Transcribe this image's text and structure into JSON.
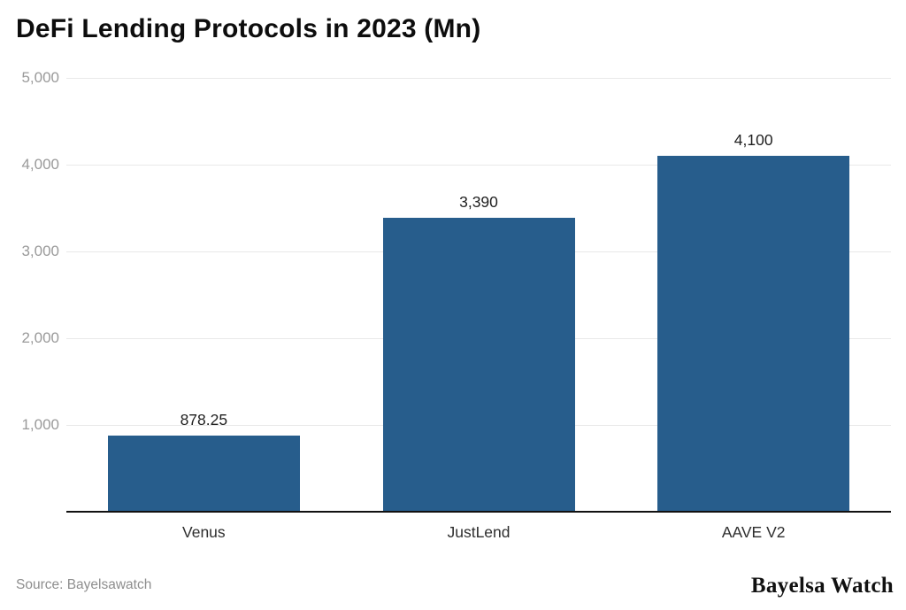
{
  "title": "DeFi Lending Protocols in 2023 (Mn)",
  "footer": {
    "source": "Source: Bayelsawatch",
    "brand": "Bayelsa Watch"
  },
  "colors": {
    "bar": "#275d8c",
    "gridline": "#e9e9e9",
    "baseline": "#111111",
    "tick_text": "#9a9a9a",
    "background": "#ffffff"
  },
  "chart_data": {
    "type": "bar",
    "title": "DeFi Lending Protocols in 2023 (Mn)",
    "categories": [
      "Venus",
      "JustLend",
      "AAVE V2"
    ],
    "values": [
      878.25,
      3390,
      4100
    ],
    "value_labels": [
      "878.25",
      "3,390",
      "4,100"
    ],
    "xlabel": "",
    "ylabel": "",
    "ylim": [
      0,
      5000
    ],
    "yticks": [
      {
        "value": 1000,
        "label": "1,000"
      },
      {
        "value": 2000,
        "label": "2,000"
      },
      {
        "value": 3000,
        "label": "3,000"
      },
      {
        "value": 4000,
        "label": "4,000"
      },
      {
        "value": 5000,
        "label": "5,000"
      }
    ],
    "grid": true,
    "legend": false
  }
}
